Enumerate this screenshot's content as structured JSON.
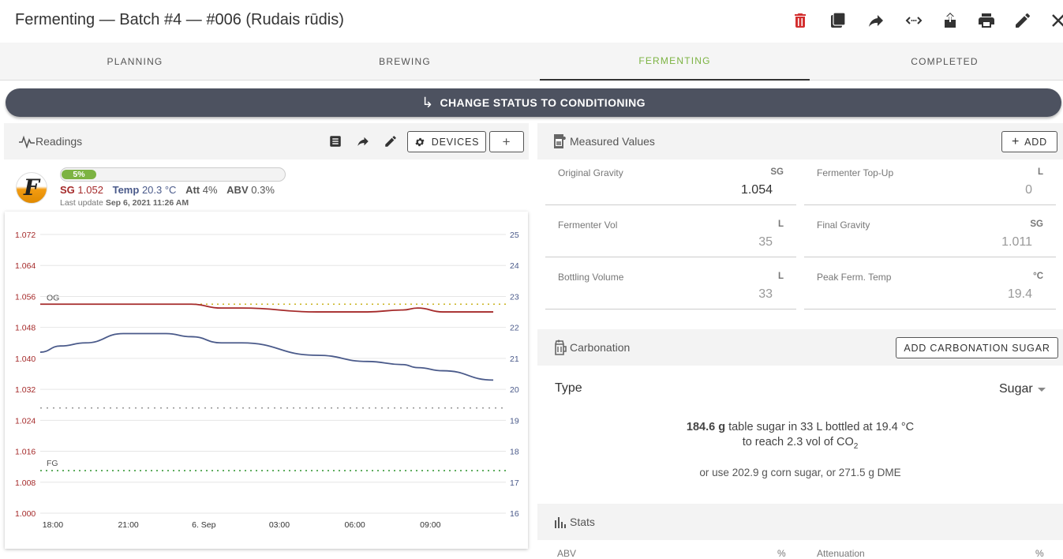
{
  "header": {
    "title": "Fermenting — Batch #4 — #006 (Rudais rūdis)"
  },
  "tabs": [
    "PLANNING",
    "BREWING",
    "FERMENTING",
    "COMPLETED"
  ],
  "status_button": "CHANGE STATUS TO CONDITIONING",
  "readings": {
    "title": "Readings",
    "devices_label": "DEVICES",
    "add_label": "+",
    "progress": "5%",
    "progress_fraction": 0.05,
    "sg_label": "SG",
    "sg_value": "1.052",
    "temp_label": "Temp",
    "temp_value": "20.3 °C",
    "att_label": "Att",
    "att_value": "4%",
    "abv_label": "ABV",
    "abv_value": "0.3%",
    "last_update_label": "Last update",
    "last_update": "Sep 6, 2021 11:26 AM",
    "logo_letter": "F"
  },
  "chart_data": {
    "type": "line",
    "x_ticks": [
      "18:00",
      "21:00",
      "6. Sep",
      "03:00",
      "06:00",
      "09:00"
    ],
    "y_left_ticks": [
      "1.072",
      "1.064",
      "1.056",
      "1.048",
      "1.040",
      "1.032",
      "1.024",
      "1.016",
      "1.008",
      "1.000"
    ],
    "y_right_ticks": [
      "25",
      "24",
      "23",
      "22",
      "21",
      "20",
      "19",
      "18",
      "17",
      "16"
    ],
    "ylim_left": [
      1.0,
      1.072
    ],
    "ylim_right": [
      16,
      25
    ],
    "og_label": "OG",
    "fg_label": "FG",
    "og_value": 1.054,
    "fg_value": 1.011,
    "dotted_temp_value": 19.4,
    "x_hours": [
      0,
      0.8,
      1.8,
      3.3,
      5.0,
      6.0,
      7.2,
      8.0,
      11.0,
      13.0,
      14.4,
      15.0,
      16.0,
      18.0
    ],
    "series": [
      {
        "axis": "left",
        "color": "#a52a2a",
        "y": [
          1.054,
          1.054,
          1.054,
          1.054,
          1.054,
          1.054,
          1.053,
          1.053,
          1.052,
          1.052,
          1.0525,
          1.053,
          1.052,
          1.052
        ]
      },
      {
        "axis": "right",
        "color": "#4a5a8a",
        "y": [
          21.2,
          21.4,
          21.5,
          21.8,
          21.8,
          21.7,
          21.5,
          21.5,
          21.1,
          20.9,
          20.8,
          20.7,
          20.6,
          20.3
        ]
      }
    ]
  },
  "measured": {
    "title": "Measured Values",
    "add_label": "ADD",
    "fields": [
      {
        "label": "Original Gravity",
        "unit": "SG",
        "value": "1.054"
      },
      {
        "label": "Fermenter Top-Up",
        "unit": "L",
        "value": "0"
      },
      {
        "label": "Fermenter Vol",
        "unit": "L",
        "value": "35"
      },
      {
        "label": "Final Gravity",
        "unit": "SG",
        "value": "1.011"
      },
      {
        "label": "Bottling Volume",
        "unit": "L",
        "value": "33"
      },
      {
        "label": "Peak Ferm. Temp",
        "unit": "°C",
        "value": "19.4"
      }
    ]
  },
  "carbonation": {
    "title": "Carbonation",
    "add_label": "ADD CARBONATION SUGAR",
    "type_label": "Type",
    "type_value": "Sugar",
    "amount": "184.6 g",
    "line1_rest": "table sugar in 33 L bottled at 19.4 °C",
    "line2": "to reach 2.3 vol of CO",
    "line2_sub": "2",
    "line3": "or use 202.9 g corn sugar, or 271.5 g DME"
  },
  "stats": {
    "title": "Stats",
    "col1_label": "ABV",
    "col1_unit": "%",
    "col2_label": "Attenuation",
    "col2_unit": "%"
  }
}
